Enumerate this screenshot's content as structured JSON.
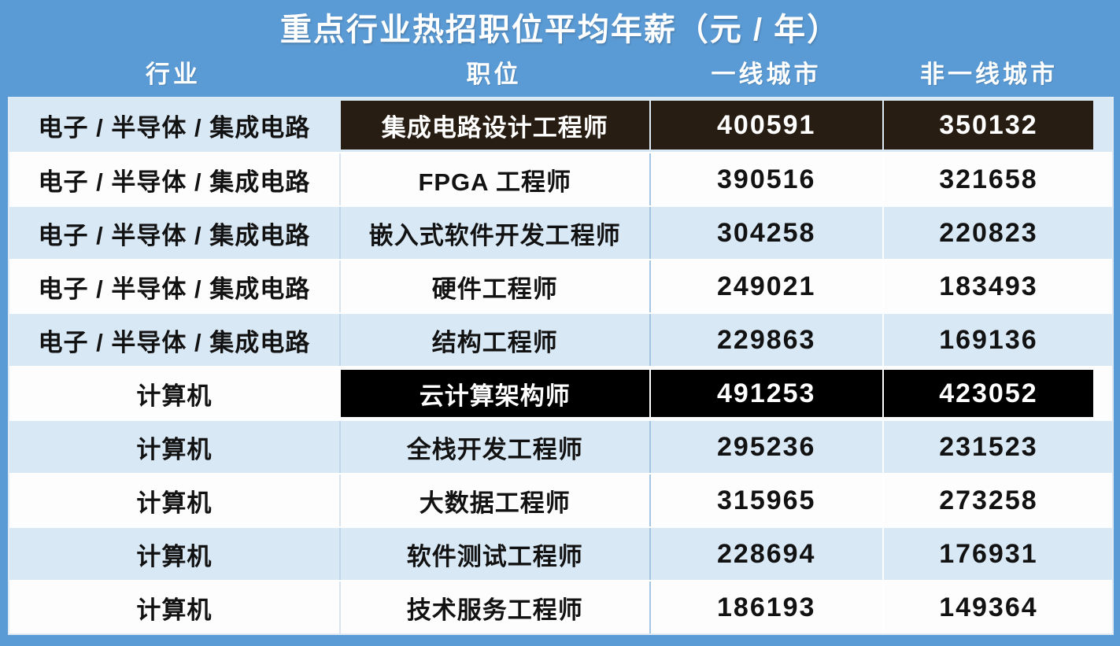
{
  "title": "重点行业热招职位平均年薪（元 / 年）",
  "table": {
    "columns": [
      {
        "key": "industry",
        "label": "行业"
      },
      {
        "key": "position",
        "label": "职位"
      },
      {
        "key": "tier1",
        "label": "一线城市"
      },
      {
        "key": "tier2",
        "label": "非一线城市"
      }
    ],
    "rows": [
      {
        "industry": "电子 / 半导体 / 集成电路",
        "position": "集成电路设计工程师",
        "tier1": "400591",
        "tier2": "350132",
        "highlight": "brown"
      },
      {
        "industry": "电子 / 半导体 / 集成电路",
        "position": "FPGA 工程师",
        "tier1": "390516",
        "tier2": "321658",
        "highlight": ""
      },
      {
        "industry": "电子 / 半导体 / 集成电路",
        "position": "嵌入式软件开发工程师",
        "tier1": "304258",
        "tier2": "220823",
        "highlight": ""
      },
      {
        "industry": "电子 / 半导体 / 集成电路",
        "position": "硬件工程师",
        "tier1": "249021",
        "tier2": "183493",
        "highlight": ""
      },
      {
        "industry": "电子 / 半导体 / 集成电路",
        "position": "结构工程师",
        "tier1": "229863",
        "tier2": "169136",
        "highlight": ""
      },
      {
        "industry": "计算机",
        "position": "云计算架构师",
        "tier1": "491253",
        "tier2": "423052",
        "highlight": "black"
      },
      {
        "industry": "计算机",
        "position": "全栈开发工程师",
        "tier1": "295236",
        "tier2": "231523",
        "highlight": ""
      },
      {
        "industry": "计算机",
        "position": "大数据工程师",
        "tier1": "315965",
        "tier2": "273258",
        "highlight": ""
      },
      {
        "industry": "计算机",
        "position": "软件测试工程师",
        "tier1": "228694",
        "tier2": "176931",
        "highlight": ""
      },
      {
        "industry": "计算机",
        "position": "技术服务工程师",
        "tier1": "186193",
        "tier2": "149364",
        "highlight": ""
      }
    ]
  },
  "colors": {
    "page_blue": "#5b9bd5",
    "row_light_blue": "#d9e8f5",
    "row_white": "#fdfdfe",
    "highlight_brown": "#281d12",
    "highlight_black": "#000000",
    "text_white": "#ffffff",
    "text_dark": "#121212"
  },
  "chart_data": {
    "type": "table",
    "title": "重点行业热招职位平均年薪（元 / 年）",
    "columns": [
      "行业",
      "职位",
      "一线城市",
      "非一线城市"
    ],
    "rows": [
      [
        "电子 / 半导体 / 集成电路",
        "集成电路设计工程师",
        400591,
        350132
      ],
      [
        "电子 / 半导体 / 集成电路",
        "FPGA 工程师",
        390516,
        321658
      ],
      [
        "电子 / 半导体 / 集成电路",
        "嵌入式软件开发工程师",
        304258,
        220823
      ],
      [
        "电子 / 半导体 / 集成电路",
        "硬件工程师",
        249021,
        183493
      ],
      [
        "电子 / 半导体 / 集成电路",
        "结构工程师",
        229863,
        169136
      ],
      [
        "计算机",
        "云计算架构师",
        491253,
        423052
      ],
      [
        "计算机",
        "全栈开发工程师",
        295236,
        231523
      ],
      [
        "计算机",
        "大数据工程师",
        315965,
        273258
      ],
      [
        "计算机",
        "软件测试工程师",
        228694,
        176931
      ],
      [
        "计算机",
        "技术服务工程师",
        186193,
        149364
      ]
    ],
    "highlighted_row_indexes": [
      0,
      5
    ],
    "layout": {
      "alternating_row_colors": true,
      "header_on_blue_background": true
    }
  }
}
